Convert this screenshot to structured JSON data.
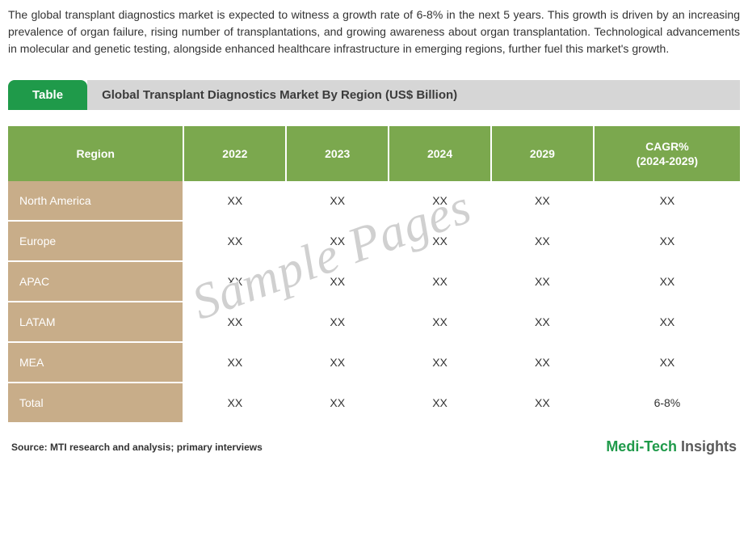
{
  "intro": "The global transplant diagnostics market is expected to witness a growth rate of 6-8% in the next 5 years. This growth is driven by an increasing prevalence of organ failure, rising number of transplantations, and growing awareness about organ transplantation. Technological advancements in molecular and genetic testing, alongside enhanced healthcare infrastructure in emerging regions, further fuel this market's growth.",
  "title_bar": {
    "pill": "Table",
    "text": "Global Transplant Diagnostics Market By Region (US$ Billion)"
  },
  "table": {
    "columns": [
      "Region",
      "2022",
      "2023",
      "2024",
      "2029",
      "CAGR%\n(2024-2029)"
    ],
    "rows": [
      [
        "North America",
        "XX",
        "XX",
        "XX",
        "XX",
        "XX"
      ],
      [
        "Europe",
        "XX",
        "XX",
        "XX",
        "XX",
        "XX"
      ],
      [
        "APAC",
        "XX",
        "XX",
        "XX",
        "XX",
        "XX"
      ],
      [
        "LATAM",
        "XX",
        "XX",
        "XX",
        "XX",
        "XX"
      ],
      [
        "MEA",
        "XX",
        "XX",
        "XX",
        "XX",
        "XX"
      ],
      [
        "Total",
        "XX",
        "XX",
        "XX",
        "XX",
        "6-8%"
      ]
    ],
    "header_bg": "#7ba84e",
    "header_fg": "#ffffff",
    "rowlabel_bg": "#c8ad89",
    "rowlabel_fg": "#ffffff",
    "cell_fg": "#333333"
  },
  "source": "Source: MTI research and analysis; primary interviews",
  "brand": {
    "part1": "Medi-Tech ",
    "part2": "Insights"
  },
  "watermark": "Sample Pages"
}
